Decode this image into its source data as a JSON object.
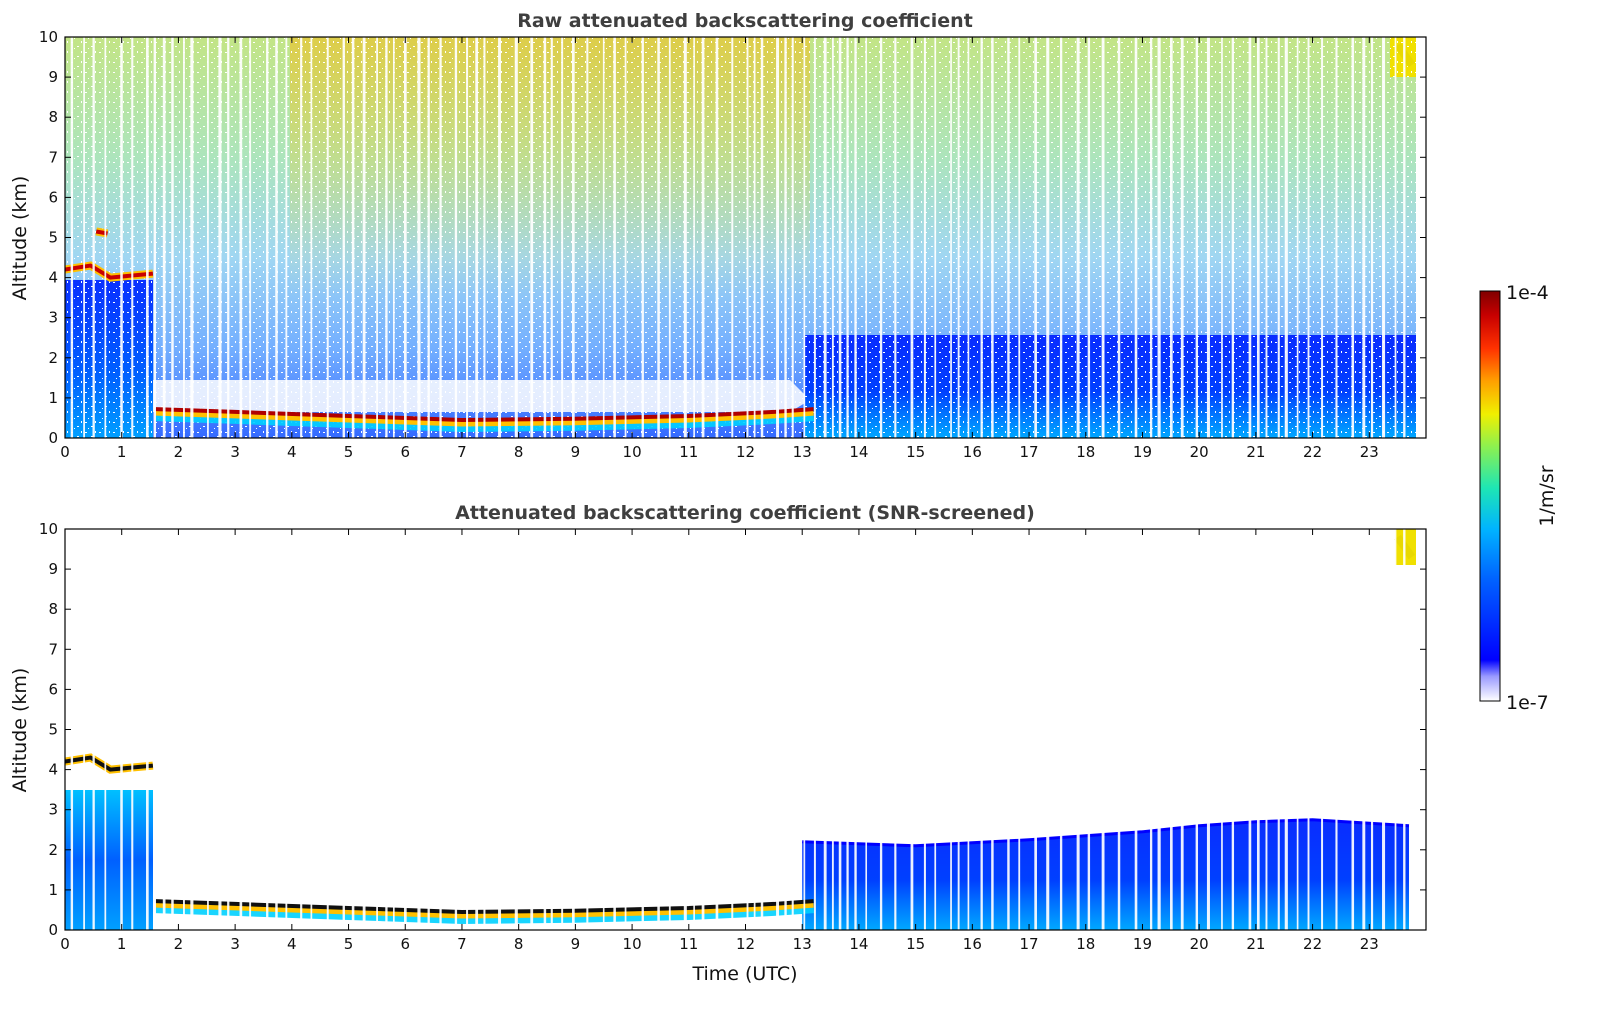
{
  "chart_data": [
    {
      "type": "heatmap",
      "title": "Raw attenuated backscattering coefficient",
      "xlabel": "",
      "ylabel": "Altitude (km)",
      "xlim": [
        0,
        24
      ],
      "ylim": [
        0,
        10
      ],
      "xticks": [
        "0",
        "1",
        "2",
        "3",
        "4",
        "5",
        "6",
        "7",
        "8",
        "9",
        "10",
        "11",
        "12",
        "13",
        "14",
        "15",
        "16",
        "17",
        "18",
        "19",
        "20",
        "21",
        "22",
        "23"
      ],
      "yticks": [
        "0",
        "1",
        "2",
        "3",
        "4",
        "5",
        "6",
        "7",
        "8",
        "9",
        "10"
      ],
      "features": [
        {
          "name": "boundary-layer-top",
          "x": [
            1.6,
            3,
            5,
            7,
            9,
            11,
            12.5,
            13.2
          ],
          "y": [
            0.72,
            0.65,
            0.55,
            0.45,
            0.48,
            0.55,
            0.65,
            0.72
          ]
        },
        {
          "name": "mid-level-cloud",
          "x": [
            0,
            0.45,
            0.8,
            1.55
          ],
          "y": [
            4.2,
            4.3,
            4.0,
            4.1
          ]
        },
        {
          "name": "cloud-patch",
          "x": [
            0.55,
            0.75
          ],
          "y": [
            5.15,
            5.1
          ]
        },
        {
          "name": "high-cloud",
          "x": [
            23.5,
            23.75
          ],
          "y": [
            9.8,
            9.3
          ]
        }
      ]
    },
    {
      "type": "heatmap",
      "title": "Attenuated backscattering coefficient (SNR-screened)",
      "xlabel": "Time (UTC)",
      "ylabel": "Altitude (km)",
      "xlim": [
        0,
        24
      ],
      "ylim": [
        0,
        10
      ],
      "xticks": [
        "0",
        "1",
        "2",
        "3",
        "4",
        "5",
        "6",
        "7",
        "8",
        "9",
        "10",
        "11",
        "12",
        "13",
        "14",
        "15",
        "16",
        "17",
        "18",
        "19",
        "20",
        "21",
        "22",
        "23"
      ],
      "yticks": [
        "0",
        "1",
        "2",
        "3",
        "4",
        "5",
        "6",
        "7",
        "8",
        "9",
        "10"
      ],
      "features": [
        {
          "name": "boundary-layer-top",
          "x": [
            1.6,
            3,
            5,
            7,
            9,
            11,
            12.5,
            13.2
          ],
          "y": [
            0.72,
            0.65,
            0.55,
            0.45,
            0.48,
            0.55,
            0.65,
            0.72
          ]
        },
        {
          "name": "aerosol-layer-top",
          "x": [
            13.0,
            15,
            17,
            19,
            20,
            21,
            22,
            23.7
          ],
          "y": [
            2.2,
            2.1,
            2.25,
            2.45,
            2.6,
            2.7,
            2.75,
            2.6
          ]
        },
        {
          "name": "mid-level-cloud",
          "x": [
            0,
            0.45,
            0.8,
            1.55
          ],
          "y": [
            4.2,
            4.3,
            4.0,
            4.1
          ]
        },
        {
          "name": "high-cloud",
          "x": [
            23.5,
            23.75
          ],
          "y": [
            9.8,
            9.3
          ]
        }
      ]
    }
  ],
  "colorbar": {
    "label": "1/m/sr",
    "max_label": "1e-4",
    "min_label": "1e-7",
    "range": [
      1e-07,
      0.0001
    ],
    "colors": [
      "#d8d8ff",
      "#8888ff",
      "#0000ff",
      "#0060ff",
      "#00b0ff",
      "#20e0c0",
      "#90f050",
      "#f0f000",
      "#ffa000",
      "#ff3000",
      "#c00000",
      "#800000"
    ]
  }
}
